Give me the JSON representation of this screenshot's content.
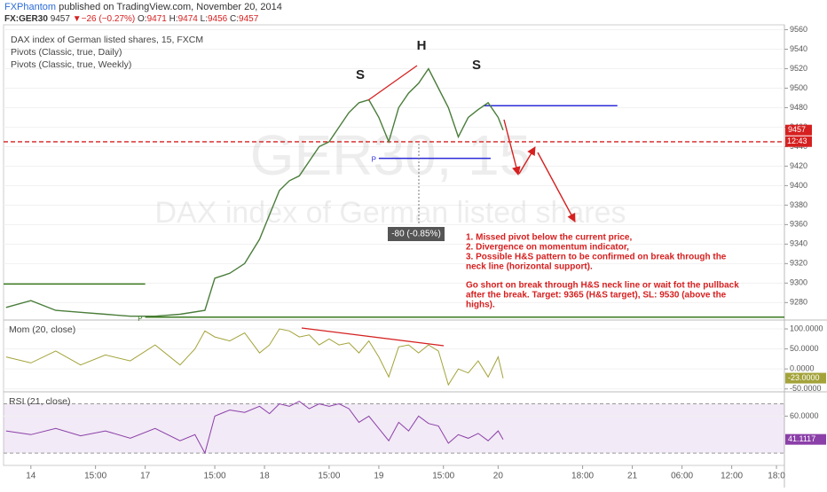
{
  "header": {
    "author": "FXPhantom",
    "published": "published on TradingView.com, November 20, 2014",
    "symbol": "FX:GER30",
    "last": "9457",
    "arrow": "▼",
    "change": "−26 (−0.27%)",
    "open_label": "O:",
    "open": "9471",
    "high_label": "H:",
    "high": "9474",
    "low_label": "L:",
    "low": "9456",
    "close_label": "C:",
    "close": "9457"
  },
  "chart_data": [
    {
      "type": "line",
      "legend": [
        "DAX index of German listed shares, 15, FXCM",
        "Pivots (Classic, true, Daily)",
        "Pivots (Classic, true, Weekly)"
      ],
      "watermark": [
        "GER30, 15",
        "DAX index of German listed shares"
      ],
      "x": [
        -5,
        0,
        5,
        10,
        15,
        20,
        25,
        30,
        35,
        37,
        40,
        43,
        46,
        48,
        50,
        52,
        54,
        56,
        58,
        60,
        62,
        64,
        66,
        68,
        70,
        72,
        74,
        76,
        78,
        80,
        82,
        84,
        86,
        88,
        90,
        92,
        94,
        95
      ],
      "series": [
        {
          "name": "DAX index of German listed shares, 15, FXCM",
          "color": "#4a7d3a",
          "values": [
            9275,
            9282,
            9272,
            9270,
            9268,
            9266,
            9266,
            9268,
            9272,
            9305,
            9310,
            9320,
            9345,
            9370,
            9395,
            9405,
            9410,
            9425,
            9440,
            9445,
            9460,
            9475,
            9485,
            9488,
            9470,
            9445,
            9480,
            9495,
            9505,
            9520,
            9500,
            9480,
            9450,
            9470,
            9478,
            9485,
            9470,
            9457
          ]
        }
      ],
      "pivots": [
        {
          "name": "Pivots (Classic, true, Daily)",
          "color": "#2b2bd9",
          "lines": [
            {
              "label": "P",
              "value": 9428,
              "x": [
                70,
                92.5
              ]
            },
            {
              "value": 9482,
              "x": [
                91,
                118
              ]
            }
          ]
        },
        {
          "name": "Pivots (Classic, true, Weekly)",
          "color": "#3a7a1e",
          "lines": [
            {
              "value": 9299,
              "x": [
                -5.5,
                23
              ]
            },
            {
              "label": "P",
              "value": 9265,
              "x": [
                23,
                151.6
              ]
            }
          ]
        }
      ],
      "neckline": 9445,
      "neckline_color": "#d62020",
      "last_price": 9457,
      "countdown": "12:43",
      "pattern_labels": [
        "S",
        "H",
        "S"
      ],
      "measure": "-80 (-0.85%)",
      "notes": [
        [
          "1. Missed pivot below the current price,",
          "2. Divergence on momentum indicator,",
          "3. Possible H&S pattern to be confirmed on break through the",
          "neck line (horizontal support)."
        ],
        [
          "Go short on break through H&S neck line or wait fot the pullback",
          "after the break. Target: 9365 (H&S target), SL: 9530 (above the",
          "highs)."
        ]
      ],
      "ylim": [
        9263,
        9565
      ],
      "yticks": [
        9280,
        9300,
        9320,
        9340,
        9360,
        9380,
        9400,
        9420,
        9440,
        9460,
        9480,
        9500,
        9520,
        9540,
        9560
      ],
      "xlim": [
        -5.5,
        151.6
      ],
      "xticks": [
        {
          "value": 0,
          "label": "14"
        },
        {
          "value": 13,
          "label": "15:00"
        },
        {
          "value": 23,
          "label": "17"
        },
        {
          "value": 37,
          "label": "15:00"
        },
        {
          "value": 47,
          "label": "18"
        },
        {
          "value": 60,
          "label": "15:00"
        },
        {
          "value": 70,
          "label": "19"
        },
        {
          "value": 83,
          "label": "15:00"
        },
        {
          "value": 94,
          "label": "20"
        },
        {
          "value": 111,
          "label": "18:00"
        },
        {
          "value": 121,
          "label": "21"
        },
        {
          "value": 131,
          "label": "06:00"
        },
        {
          "value": 141,
          "label": "12:00"
        },
        {
          "value": 150,
          "label": "18:0"
        }
      ]
    },
    {
      "type": "line",
      "title": "Mom (20, close)",
      "x": [
        -5,
        0,
        5,
        10,
        15,
        20,
        25,
        30,
        33,
        35,
        37,
        40,
        43,
        46,
        48,
        50,
        52,
        54,
        56,
        58,
        60,
        62,
        64,
        66,
        68,
        70,
        72,
        74,
        76,
        78,
        80,
        82,
        84,
        86,
        88,
        90,
        92,
        94,
        95
      ],
      "series": [
        {
          "name": "Mom (20, close)",
          "color": "#a3a33a",
          "values": [
            30,
            15,
            45,
            10,
            35,
            20,
            60,
            10,
            50,
            95,
            80,
            70,
            90,
            40,
            60,
            100,
            95,
            80,
            85,
            60,
            75,
            60,
            65,
            40,
            70,
            30,
            -20,
            55,
            60,
            40,
            60,
            45,
            -40,
            0,
            -10,
            20,
            -20,
            30,
            -23
          ]
        }
      ],
      "last_label": "-23.0000",
      "ylim": [
        -55,
        120
      ],
      "yticks": [
        {
          "value": 100,
          "label": "100.0000"
        },
        {
          "value": 50,
          "label": "50.0000"
        },
        {
          "value": 0,
          "label": "0.0000"
        },
        {
          "value": -50,
          "label": "-50.0000"
        }
      ]
    },
    {
      "type": "line",
      "title": "RSI (21, close)",
      "x": [
        -5,
        0,
        5,
        10,
        15,
        20,
        25,
        30,
        33,
        35,
        37,
        40,
        43,
        46,
        48,
        50,
        52,
        54,
        56,
        58,
        60,
        62,
        64,
        66,
        68,
        70,
        72,
        74,
        76,
        78,
        80,
        82,
        84,
        86,
        88,
        90,
        92,
        94,
        95
      ],
      "series": [
        {
          "name": "RSI (21, close)",
          "color": "#8b3fa8",
          "values": [
            48,
            45,
            50,
            44,
            48,
            42,
            50,
            40,
            45,
            30,
            60,
            65,
            63,
            68,
            62,
            70,
            68,
            72,
            66,
            70,
            68,
            70,
            66,
            55,
            60,
            50,
            40,
            55,
            48,
            60,
            54,
            52,
            38,
            45,
            42,
            46,
            40,
            48,
            41.1117
          ]
        }
      ],
      "band": [
        30,
        70
      ],
      "band_color": "#9b59b6",
      "last_label": "41.1117",
      "ylim": [
        20,
        79
      ],
      "yticks": [
        {
          "value": 60,
          "label": "60.0000"
        }
      ]
    }
  ]
}
